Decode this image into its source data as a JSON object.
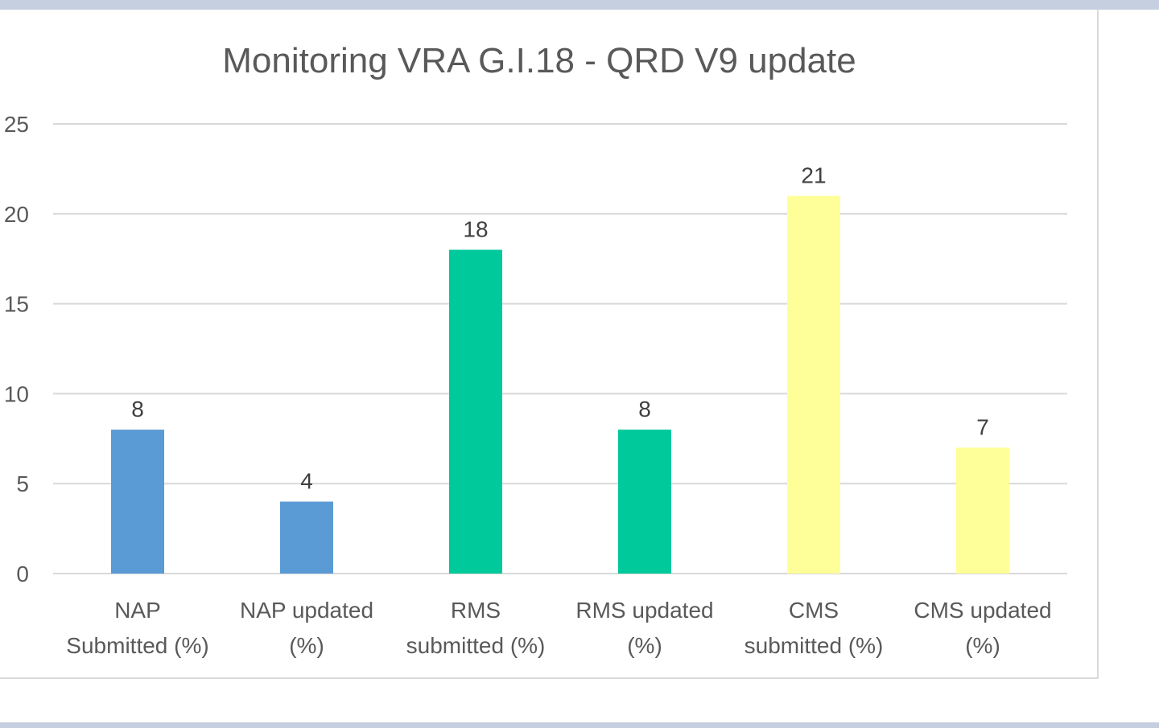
{
  "chart_data": {
    "type": "bar",
    "title": "Monitoring VRA G.I.18 - QRD V9 update",
    "xlabel": "",
    "ylabel": "",
    "categories": [
      [
        "NAP",
        "Submitted (%)"
      ],
      [
        "NAP updated",
        "(%)"
      ],
      [
        "RMS",
        "submitted (%)"
      ],
      [
        "RMS updated",
        "(%)"
      ],
      [
        "CMS",
        "submitted (%)"
      ],
      [
        "CMS updated",
        "(%)"
      ]
    ],
    "values": [
      8,
      4,
      18,
      8,
      21,
      7
    ],
    "bar_colors": [
      "#5b9bd5",
      "#5b9bd5",
      "#00c99b",
      "#00c99b",
      "#ffff99",
      "#ffff99"
    ],
    "ylim": [
      0,
      25
    ],
    "yticks": [
      0,
      5,
      10,
      15,
      20,
      25
    ],
    "grid": true,
    "legend": "none",
    "data_labels": true
  }
}
